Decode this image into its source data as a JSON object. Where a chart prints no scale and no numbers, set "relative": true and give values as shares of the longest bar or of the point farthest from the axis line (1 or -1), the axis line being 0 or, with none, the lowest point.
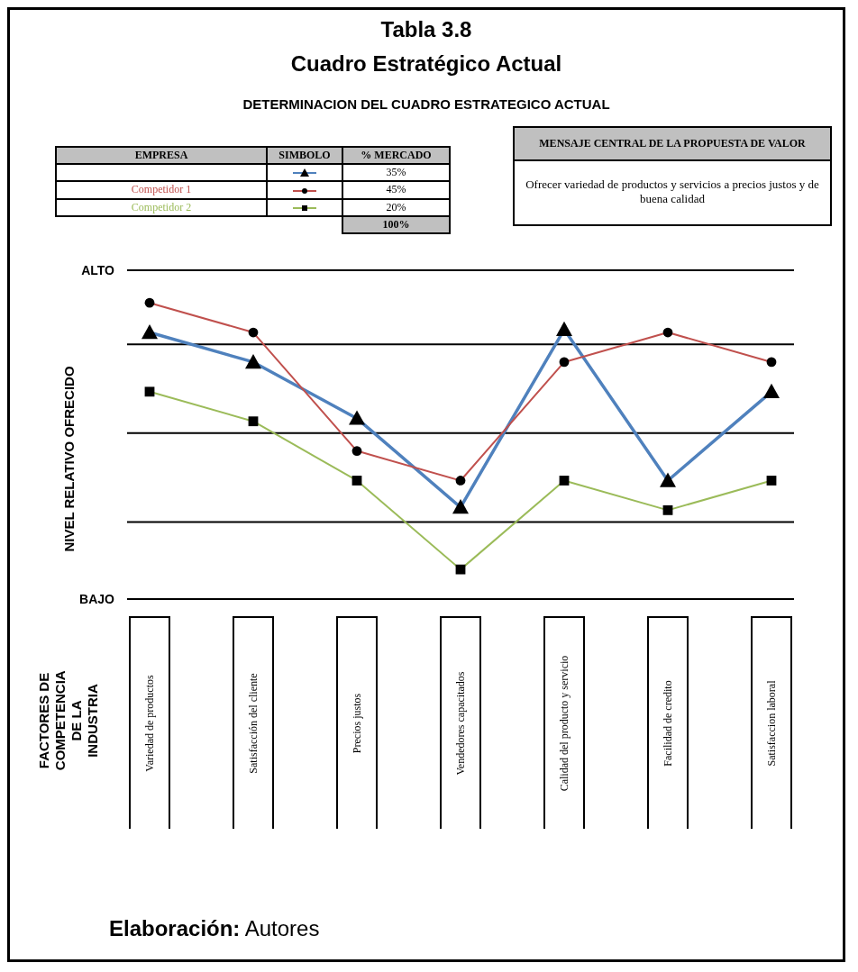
{
  "chart_data": {
    "type": "line",
    "title": "Tabla 3.8",
    "subtitle": "Cuadro Estratégico Actual",
    "ylabel": "NIVEL RELATIVO OFRECIDO",
    "relative": true,
    "legend": "top left",
    "line_style": "solid",
    "categories": [
      "Variedad de productos",
      "Satisfacción del cliente",
      "Precios justos",
      "Vendedores capacitados",
      "Calidad del producto y servicio",
      "Facilidad de credito",
      "Satisfaccion laboral"
    ],
    "series": [
      {
        "color": "#4f81bd",
        "marker": "triangle",
        "values": [
          0.9,
          0.8,
          0.61,
          0.31,
          0.91,
          0.4,
          0.7
        ]
      },
      {
        "name": "Competidor 1",
        "color": "#c0504d",
        "marker": "circle",
        "values": [
          1,
          0.9,
          0.5,
          0.4,
          0.8,
          0.9,
          0.8
        ]
      },
      {
        "name": "Competidor 2",
        "color": "#9bbb59",
        "marker": "square",
        "values": [
          0.7,
          0.6,
          0.4,
          0.1,
          0.4,
          0.3,
          0.4
        ]
      }
    ],
    "ref_lines": [
      {
        "axis": "y",
        "value": 1.11,
        "label": "ALTO",
        "color": "#000000"
      },
      {
        "axis": "y",
        "value": 0.86,
        "label": null,
        "color": "#000000"
      },
      {
        "axis": "y",
        "value": 0.56,
        "label": null,
        "color": "#000000"
      },
      {
        "axis": "y",
        "value": 0.26,
        "label": null,
        "color": "#000000"
      },
      {
        "axis": "y",
        "value": 0,
        "label": "BAJO",
        "color": "#000000"
      }
    ],
    "annotations": [
      "DETERMINACION DEL CUADRO ESTRATEGICO ACTUAL",
      "EMPRESA",
      "SIMBOLO",
      "% MERCADO",
      "35%",
      "45%",
      "20%",
      "100%",
      "MENSAJE CENTRAL DE LA PROPUESTA DE VALOR",
      "Ofrecer variedad de productos y servicios a precios justos y de buena calidad",
      "Elaboración: Autores",
      "FACTORES DE COMPETENCIA DE LA INDUSTRIA"
    ]
  }
}
